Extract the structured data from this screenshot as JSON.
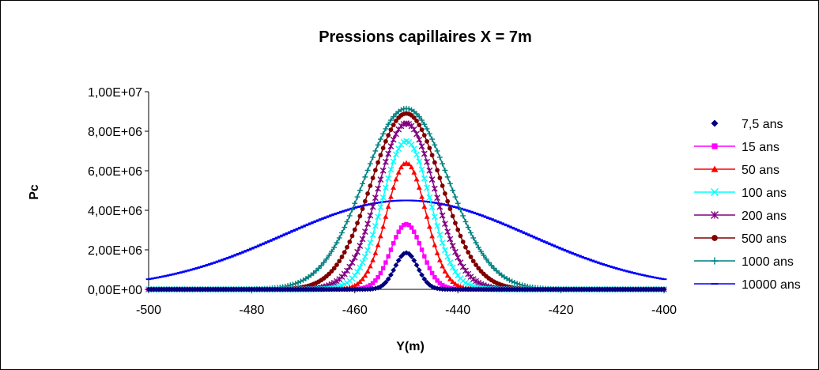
{
  "chart_data": {
    "type": "scatter",
    "title": "Pressions capillaires X = 7m",
    "xlabel": "Y(m)",
    "ylabel": "Pc",
    "xlim": [
      -500,
      -400
    ],
    "ylim": [
      0,
      10000000
    ],
    "x_ticks": [
      -500,
      -480,
      -460,
      -440,
      -420,
      -400
    ],
    "x_tick_labels": [
      "-500",
      "-480",
      "-460",
      "-440",
      "-420",
      "-400"
    ],
    "y_ticks": [
      0,
      2000000,
      4000000,
      6000000,
      8000000,
      10000000
    ],
    "y_tick_labels": [
      "0,00E+00",
      "2,00E+06",
      "4,00E+06",
      "6,00E+06",
      "8,00E+06",
      "1,00E+07"
    ],
    "grid": false,
    "legend_position": "right",
    "center": -450,
    "series": [
      {
        "name": "7,5 ans",
        "color": "#000080",
        "marker": "diamond",
        "peak": 1850000,
        "width": 2.2,
        "x": [
          -500,
          -460,
          -455,
          -452,
          -450,
          -448,
          -445,
          -440,
          -400
        ],
        "y": [
          0,
          0,
          200000,
          1200000,
          1850000,
          1200000,
          200000,
          0,
          0
        ]
      },
      {
        "name": "15 ans",
        "color": "#ff00ff",
        "marker": "square",
        "peak": 3300000,
        "width": 3.0,
        "x": [
          -500,
          -460,
          -455,
          -452,
          -450,
          -448,
          -445,
          -440,
          -400
        ],
        "y": [
          0,
          0,
          500000,
          2200000,
          3300000,
          2200000,
          500000,
          0,
          0
        ]
      },
      {
        "name": "50 ans",
        "color": "#ff0000",
        "marker": "triangle",
        "peak": 6400000,
        "width": 3.8,
        "x": [
          -500,
          -460,
          -455,
          -452,
          -450,
          -448,
          -445,
          -440,
          -400
        ],
        "y": [
          0,
          50000,
          1400000,
          4700000,
          6400000,
          4700000,
          1400000,
          50000,
          0
        ]
      },
      {
        "name": "100 ans",
        "color": "#00ffff",
        "marker": "x",
        "peak": 7500000,
        "width": 4.6,
        "x": [
          -500,
          -465,
          -456,
          -452,
          -450,
          -448,
          -444,
          -435,
          -400
        ],
        "y": [
          0,
          50000,
          2100000,
          6500000,
          7500000,
          6500000,
          2100000,
          50000,
          0
        ]
      },
      {
        "name": "200 ans",
        "color": "#800080",
        "marker": "star",
        "peak": 8400000,
        "width": 5.5,
        "x": [
          -500,
          -465,
          -456,
          -452,
          -450,
          -448,
          -444,
          -435,
          -400
        ],
        "y": [
          0,
          150000,
          3200000,
          7500000,
          8400000,
          7500000,
          3200000,
          150000,
          0
        ]
      },
      {
        "name": "500 ans",
        "color": "#800000",
        "marker": "circle",
        "peak": 8900000,
        "width": 6.8,
        "x": [
          -500,
          -470,
          -458,
          -453,
          -450,
          -447,
          -442,
          -430,
          -400
        ],
        "y": [
          0,
          100000,
          3800000,
          8000000,
          8900000,
          8000000,
          3800000,
          100000,
          0
        ]
      },
      {
        "name": "1000 ans",
        "color": "#008080",
        "marker": "plus",
        "peak": 9150000,
        "width": 8.2,
        "x": [
          -500,
          -470,
          -458,
          -453,
          -450,
          -447,
          -442,
          -430,
          -400
        ],
        "y": [
          0,
          400000,
          5100000,
          8600000,
          9150000,
          8600000,
          5100000,
          400000,
          0
        ]
      },
      {
        "name": "10000 ans",
        "color": "#0000ff",
        "marker": "dash",
        "peak": 4500000,
        "width": 24.0,
        "x": [
          -500,
          -480,
          -470,
          -460,
          -450,
          -440,
          -430,
          -420,
          -400
        ],
        "y": [
          0,
          1000000,
          2700000,
          4000000,
          4500000,
          4000000,
          2700000,
          1000000,
          0
        ]
      }
    ]
  }
}
